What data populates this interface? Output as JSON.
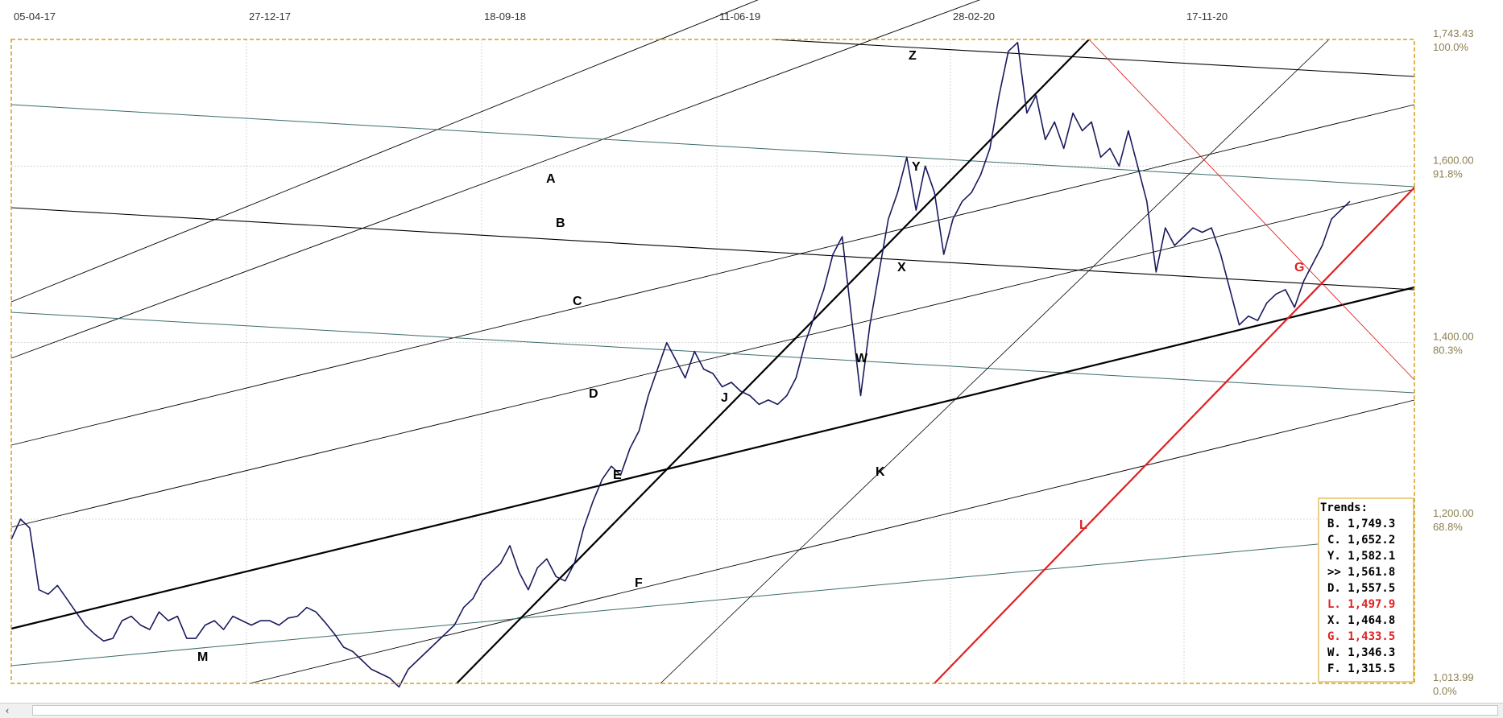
{
  "chart_data": {
    "type": "line",
    "x_tick_labels": [
      "05-04-17",
      "27-12-17",
      "18-09-18",
      "11-06-19",
      "28-02-20",
      "17-11-20"
    ],
    "y_tick_labels": [
      "1,743.43",
      "1,600.00",
      "1,400.00",
      "1,200.00",
      "1,013.99"
    ],
    "y_tick_values": [
      1743.43,
      1600,
      1400,
      1200,
      1013.99
    ],
    "pct_labels": [
      "100.0%",
      "91.8%",
      "80.3%",
      "68.8%",
      "0.0%"
    ],
    "ylim": [
      1013.99,
      1743.43
    ],
    "grid": true,
    "series": [
      {
        "values": [
          1177,
          1200,
          1190,
          1120,
          1115,
          1125,
          1110,
          1095,
          1080,
          1070,
          1062,
          1065,
          1085,
          1090,
          1080,
          1075,
          1095,
          1085,
          1090,
          1065,
          1065,
          1080,
          1085,
          1075,
          1090,
          1085,
          1080,
          1085,
          1085,
          1080,
          1088,
          1090,
          1100,
          1095,
          1083,
          1070,
          1055,
          1050,
          1040,
          1030,
          1025,
          1020,
          1010,
          1030,
          1040,
          1050,
          1060,
          1070,
          1080,
          1100,
          1110,
          1130,
          1140,
          1150,
          1170,
          1140,
          1120,
          1145,
          1155,
          1135,
          1130,
          1150,
          1190,
          1220,
          1245,
          1260,
          1250,
          1280,
          1300,
          1340,
          1370,
          1400,
          1380,
          1360,
          1390,
          1370,
          1365,
          1350,
          1355,
          1345,
          1340,
          1330,
          1335,
          1330,
          1340,
          1360,
          1400,
          1430,
          1460,
          1500,
          1520,
          1430,
          1340,
          1420,
          1480,
          1540,
          1570,
          1610,
          1550,
          1600,
          1570,
          1500,
          1540,
          1560,
          1570,
          1590,
          1620,
          1680,
          1730,
          1740,
          1660,
          1680,
          1630,
          1650,
          1620,
          1660,
          1640,
          1650,
          1610,
          1620,
          1600,
          1640,
          1600,
          1560,
          1480,
          1530,
          1510,
          1520,
          1530,
          1525,
          1530,
          1500,
          1460,
          1420,
          1430,
          1425,
          1445,
          1455,
          1460,
          1440,
          1470,
          1490,
          1510,
          1540,
          1550,
          1560
        ]
      }
    ],
    "lines": [
      {
        "label": "A",
        "color": "#000000"
      },
      {
        "label": "B",
        "color": "#000000"
      },
      {
        "label": "C",
        "color": "#000000"
      },
      {
        "label": "D",
        "color": "#000000"
      },
      {
        "label": "E",
        "color": "#000000"
      },
      {
        "label": "F",
        "color": "#000000"
      },
      {
        "label": "G",
        "color": "#e02020"
      },
      {
        "label": "J",
        "color": "#000000"
      },
      {
        "label": "K",
        "color": "#000000"
      },
      {
        "label": "L",
        "color": "#e02020"
      },
      {
        "label": "M",
        "color": "#000000"
      },
      {
        "label": "W",
        "color": "#000000"
      },
      {
        "label": "X",
        "color": "#000000"
      },
      {
        "label": "Y",
        "color": "#000000"
      },
      {
        "label": "Z",
        "color": "#000000"
      }
    ],
    "trends": {
      "title": "Trends:",
      "items": [
        {
          "text": "B. 1,749.3",
          "color": "#000000"
        },
        {
          "text": "C. 1,652.2",
          "color": "#000000"
        },
        {
          "text": "Y. 1,582.1",
          "color": "#000000"
        },
        {
          "text": ">> 1,561.8",
          "color": "#000000"
        },
        {
          "text": "D. 1,557.5",
          "color": "#000000"
        },
        {
          "text": "L. 1,497.9",
          "color": "#e02020"
        },
        {
          "text": "X. 1,464.8",
          "color": "#000000"
        },
        {
          "text": "G. 1,433.5",
          "color": "#e02020"
        },
        {
          "text": "W. 1,346.3",
          "color": "#000000"
        },
        {
          "text": "F. 1,315.5",
          "color": "#000000"
        }
      ]
    }
  },
  "colors": {
    "price_line": "#1a1a5e",
    "frame": "#d4a017",
    "grid": "#cccccc",
    "axis_label": "#8b8050",
    "red": "#e02020",
    "teal": "#3d6b6b"
  },
  "scrollbar": {
    "left_arrow_icon": "‹"
  }
}
